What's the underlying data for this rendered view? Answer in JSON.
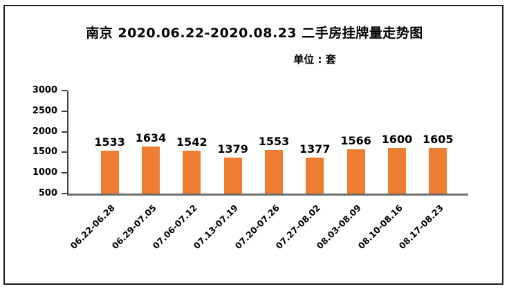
{
  "frame": {
    "border_color": "#1c1c1c",
    "background": "#ffffff"
  },
  "chart_data": {
    "type": "bar",
    "title": "南京 2020.06.22-2020.08.23 二手房挂牌量走势图",
    "unit_label": "单位 : 套",
    "categories": [
      "06.22-06.28",
      "06.29-07.05",
      "07.06-07.12",
      "07.13-07.19",
      "07.20-07.26",
      "07.27-08.02",
      "08.03-08.09",
      "08.10-08.16",
      "08.17-08.23"
    ],
    "values": [
      1533,
      1634,
      1542,
      1379,
      1553,
      1377,
      1566,
      1600,
      1605
    ],
    "ylim": [
      500,
      3000
    ],
    "yticks": [
      500,
      1000,
      1500,
      2000,
      2500,
      3000
    ],
    "xlabel": "",
    "ylabel": "",
    "grid": false,
    "legend_position": "none",
    "data_labels": true,
    "x_label_rotation_deg": 45,
    "bar_color": "#ED7D31",
    "axis_color": "#3f3f3f",
    "baseline_color": "#6e6e6e",
    "text_color": "#000000"
  }
}
